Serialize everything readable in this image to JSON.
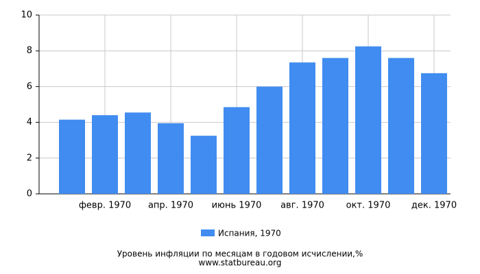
{
  "chart_data": {
    "type": "bar",
    "categories": [
      null,
      "февр. 1970",
      null,
      "апр. 1970",
      null,
      "июнь 1970",
      null,
      "авг. 1970",
      null,
      "окт. 1970",
      null,
      "дек. 1970"
    ],
    "series": [
      {
        "name": "Испания, 1970",
        "color": "#418cf0",
        "values": [
          4.15,
          4.4,
          4.55,
          3.95,
          3.25,
          4.85,
          6.0,
          7.35,
          7.6,
          8.25,
          7.6,
          6.75
        ]
      }
    ],
    "ylim": [
      0,
      10
    ],
    "yticks": [
      0,
      2,
      4,
      6,
      8,
      10
    ],
    "grid": true,
    "footer": [
      "Уровень инфляции по месяцам в годовом исчислении,%",
      "www.statbureau.org"
    ]
  }
}
